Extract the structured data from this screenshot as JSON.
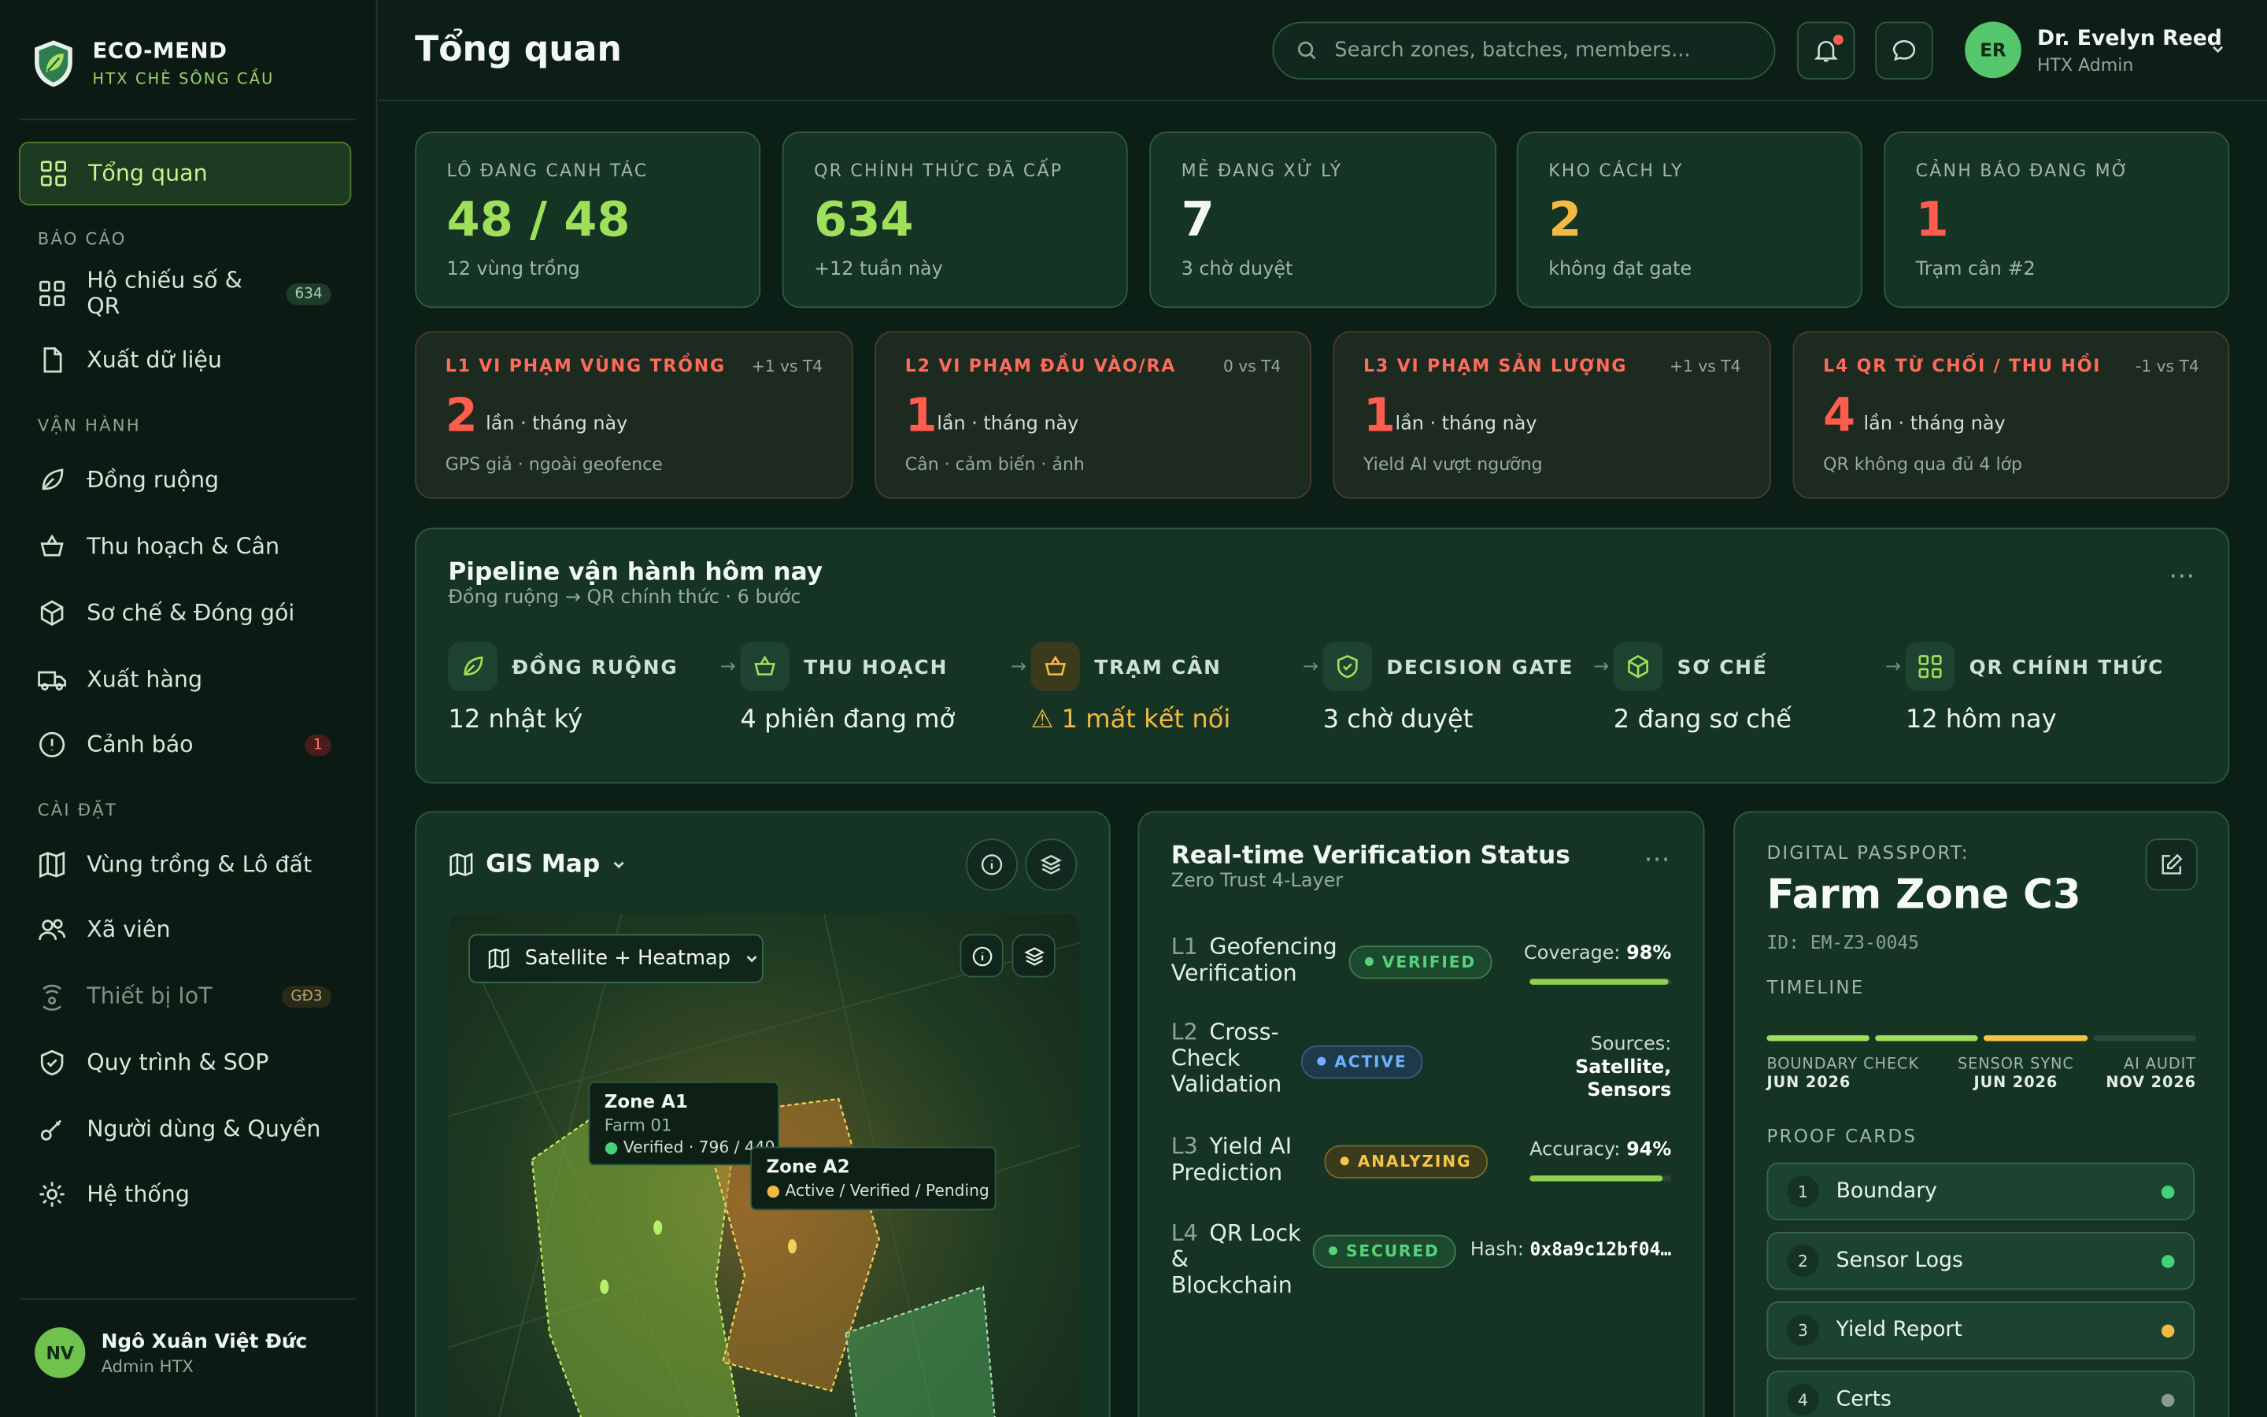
{
  "brand": {
    "name": "ECO-MEND",
    "sub": "HTX CHÈ SÔNG CẦU"
  },
  "sidebar": {
    "overview": "Tổng quan",
    "sections": {
      "reports": "BÁO CÁO",
      "ops": "VẬN HÀNH",
      "settings": "CÀI ĐẶT"
    },
    "items": [
      {
        "label": "Hộ chiếu số & QR",
        "badge": "634"
      },
      {
        "label": "Xuất dữ liệu"
      },
      {
        "label": "Đồng ruộng"
      },
      {
        "label": "Thu hoạch & Cân"
      },
      {
        "label": "Sơ chế & Đóng gói"
      },
      {
        "label": "Xuất hàng"
      },
      {
        "label": "Cảnh báo",
        "badge": "1"
      },
      {
        "label": "Vùng trồng & Lô đất"
      },
      {
        "label": "Xã viên"
      },
      {
        "label": "Thiết bị IoT",
        "badge": "GĐ3"
      },
      {
        "label": "Quy trình & SOP"
      },
      {
        "label": "Người dùng & Quyền"
      },
      {
        "label": "Hệ thống"
      }
    ],
    "user": {
      "initials": "NV",
      "name": "Ngô Xuân Việt Đức",
      "role": "Admin HTX"
    }
  },
  "header": {
    "title": "Tổng quan",
    "search_placeholder": "Search zones, batches, members...",
    "user": {
      "initials": "ER",
      "name": "Dr. Evelyn Reed",
      "role": "HTX Admin"
    }
  },
  "kpis": [
    {
      "label": "LÔ ĐANG CANH TÁC",
      "value": "48 / 48",
      "sub": "12 vùng trồng",
      "color": "#9ee05a"
    },
    {
      "label": "QR CHÍNH THỨC ĐÃ CẤP",
      "value": "634",
      "sub": "+12 tuần này",
      "color": "#9ee05a"
    },
    {
      "label": "MẺ ĐANG XỬ LÝ",
      "value": "7",
      "sub": "3 chờ duyệt",
      "color": "#f3f7f3"
    },
    {
      "label": "KHO CÁCH LY",
      "value": "2",
      "sub": "không đạt gate",
      "color": "#f4b942"
    },
    {
      "label": "CẢNH BÁO ĐANG MỞ",
      "value": "1",
      "sub": "Trạm cân #2",
      "color": "#ff5c4e"
    }
  ],
  "violations": [
    {
      "title": "L1 VI PHẠM VÙNG TRỒNG",
      "delta": "+1 vs T4",
      "num": "2",
      "unit": "lần · tháng này",
      "sub": "GPS giả · ngoài geofence"
    },
    {
      "title": "L2 VI PHẠM ĐẦU VÀO/RA",
      "delta": "0 vs T4",
      "num": "1",
      "unit": "lần · tháng này",
      "sub": "Cân · cảm biến · ảnh"
    },
    {
      "title": "L3 VI PHẠM SẢN LƯỢNG",
      "delta": "+1 vs T4",
      "num": "1",
      "unit": "lần · tháng này",
      "sub": "Yield AI vượt ngưỡng"
    },
    {
      "title": "L4 QR TỪ CHỐI / THU HỒI",
      "delta": "-1 vs T4",
      "num": "4",
      "unit": "lần · tháng này",
      "sub": "QR không qua đủ 4 lớp"
    }
  ],
  "pipeline": {
    "title": "Pipeline vận hành hôm nay",
    "sub": "Đồng ruộng → QR chính thức · 6 bước",
    "steps": [
      {
        "name": "ĐỒNG RUỘNG",
        "value": "12 nhật ký"
      },
      {
        "name": "THU HOẠCH",
        "value": "4 phiên đang mở"
      },
      {
        "name": "TRẠM CÂN",
        "value": "⚠ 1 mất kết nối"
      },
      {
        "name": "DECISION GATE",
        "value": "3 chờ duyệt"
      },
      {
        "name": "SƠ CHẾ",
        "value": "2 đang sơ chế"
      },
      {
        "name": "QR CHÍNH THỨC",
        "value": "12 hôm nay"
      }
    ]
  },
  "gis": {
    "title": "GIS Map",
    "layer": "Satellite + Heatmap",
    "zones": [
      {
        "name": "Zone A1",
        "farm": "Farm 01",
        "status": "Verified · 796 / 440"
      },
      {
        "name": "Zone A2",
        "status": "Active / Verified / Pending"
      }
    ]
  },
  "verification": {
    "title": "Real-time Verification Status",
    "sub": "Zero Trust 4-Layer",
    "rows": [
      {
        "lv": "L1",
        "name": "Geofencing Verification",
        "status": "VERIFIED",
        "metric_label": "Coverage:",
        "metric": "98%",
        "progress": 98
      },
      {
        "lv": "L2",
        "name": "Cross-Check Validation",
        "status": "ACTIVE",
        "metric_label": "Sources:",
        "metric": "Satellite, Sensors"
      },
      {
        "lv": "L3",
        "name": "Yield AI Prediction",
        "status": "ANALYZING",
        "metric_label": "Accuracy:",
        "metric": "94%",
        "progress": 94
      },
      {
        "lv": "L4",
        "name": "QR Lock & Blockchain",
        "status": "SECURED",
        "metric_label": "Hash:",
        "metric": "0x8a9c12bf04…"
      }
    ]
  },
  "passport": {
    "label": "DIGITAL PASSPORT:",
    "zone": "Farm Zone C3",
    "id": "ID: EM-Z3-0045",
    "timeline_label": "TIMELINE",
    "timeline": [
      {
        "name": "BOUNDARY CHECK",
        "date": "JUN 2026"
      },
      {
        "name": "SENSOR SYNC",
        "date": "JUN 2026"
      },
      {
        "name": "AI AUDIT",
        "date": "NOV 2026"
      }
    ],
    "proof_label": "PROOF CARDS",
    "proofs": [
      {
        "n": "1",
        "name": "Boundary",
        "status_color": "#43d17a"
      },
      {
        "n": "2",
        "name": "Sensor Logs",
        "status_color": "#43d17a"
      },
      {
        "n": "3",
        "name": "Yield Report",
        "status_color": "#f4b942"
      },
      {
        "n": "4",
        "name": "Certs",
        "status_color": "#8a9a90"
      }
    ]
  },
  "colors": {
    "accent": "#9ee05a",
    "danger": "#ff5c4e",
    "warning": "#f4b942",
    "bg": "#0c1f17"
  }
}
